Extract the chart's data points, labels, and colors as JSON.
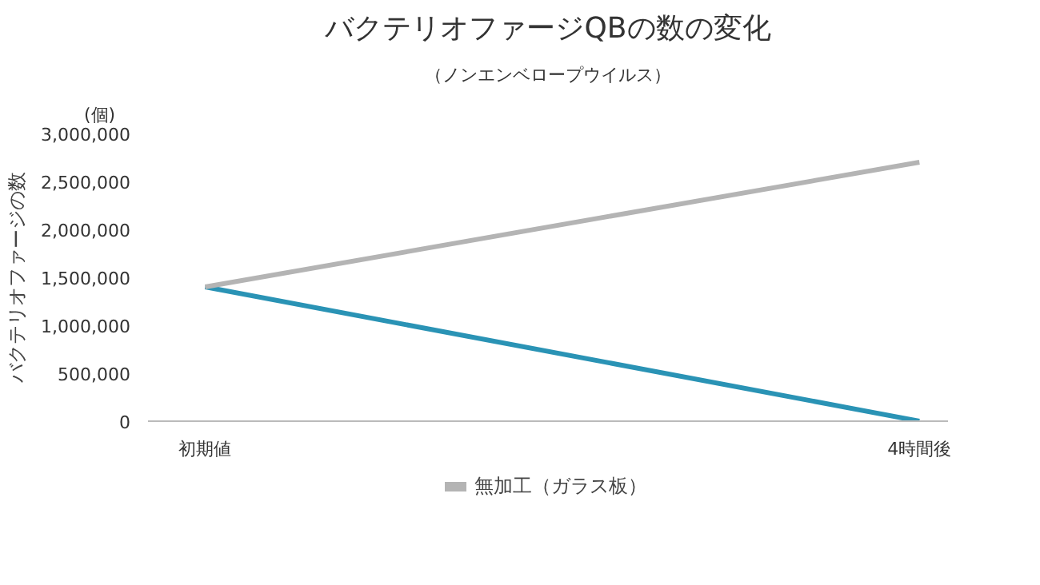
{
  "chart_data": {
    "type": "line",
    "title": "バクテリオファージQBの数の変化",
    "subtitle": "（ノンエンベロープウイルス）",
    "ylabel": "バクテリオファージの数",
    "annotations": [
      "(個)"
    ],
    "categories": [
      "初期値",
      "4時間後"
    ],
    "series": [
      {
        "color": "#2a93b5",
        "values": [
          1400000,
          0
        ]
      },
      {
        "name": "無加工（ガラス板）",
        "color": "#b4b4b4",
        "values": [
          1400000,
          2700000
        ]
      }
    ],
    "ylim": [
      0,
      3000000
    ],
    "yticks": [
      {
        "value": 0,
        "label": "0"
      },
      {
        "value": 500000,
        "label": "500,000"
      },
      {
        "value": 1000000,
        "label": "1,000,000"
      },
      {
        "value": 1500000,
        "label": "1,500,000"
      },
      {
        "value": 2000000,
        "label": "2,000,000"
      },
      {
        "value": 2500000,
        "label": "2,500,000"
      },
      {
        "value": 3000000,
        "label": "3,000,000"
      }
    ],
    "grid": false,
    "legend": "bottom",
    "marker": "none",
    "line_style": "solid"
  }
}
